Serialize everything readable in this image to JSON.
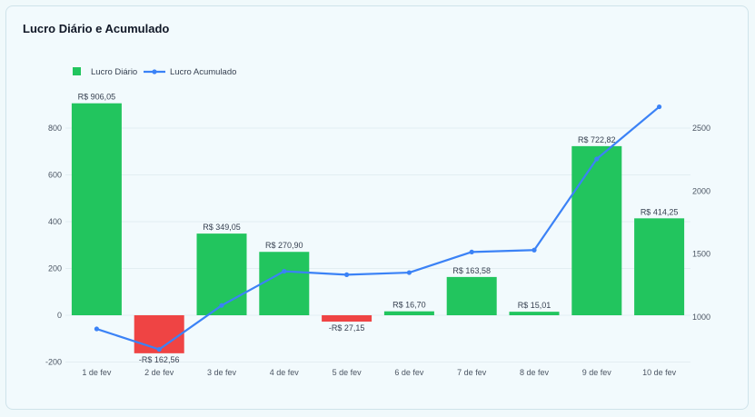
{
  "card": {
    "title": "Lucro Diário e Acumulado"
  },
  "chart_data": {
    "type": "bar",
    "title": "Lucro Diário e Acumulado",
    "categories": [
      "1 de fev",
      "2 de fev",
      "3 de fev",
      "4 de fev",
      "5 de fev",
      "6 de fev",
      "7 de fev",
      "8 de fev",
      "9 de fev",
      "10 de fev"
    ],
    "series": [
      {
        "name": "Lucro Diário",
        "type": "bar",
        "axis": "left",
        "values": [
          906.05,
          -162.56,
          349.05,
          270.9,
          -27.15,
          16.7,
          163.58,
          15.01,
          722.82,
          414.25
        ],
        "labels": [
          "R$ 906,05",
          "-R$ 162,56",
          "R$ 349,05",
          "R$ 270,90",
          "-R$ 27,15",
          "R$ 16,70",
          "R$ 163,58",
          "R$ 15,01",
          "R$ 722,82",
          "R$ 414,25"
        ],
        "color_positive": "#22c55e",
        "color_negative": "#ef4444"
      },
      {
        "name": "Lucro Acumulado",
        "type": "line",
        "axis": "right",
        "values": [
          906.05,
          743.49,
          1092.54,
          1363.44,
          1336.29,
          1352.99,
          1516.57,
          1531.58,
          2254.4,
          2668.65
        ],
        "color": "#3b82f6"
      }
    ],
    "y_left": {
      "ylim": [
        -200,
        900
      ],
      "ticks": [
        -200,
        0,
        200,
        400,
        600,
        800
      ]
    },
    "y_right": {
      "ylim": [
        750,
        2750
      ],
      "ticks": [
        1000,
        1500,
        2000,
        2500
      ]
    },
    "grid": true,
    "legend_position": "top-left"
  }
}
